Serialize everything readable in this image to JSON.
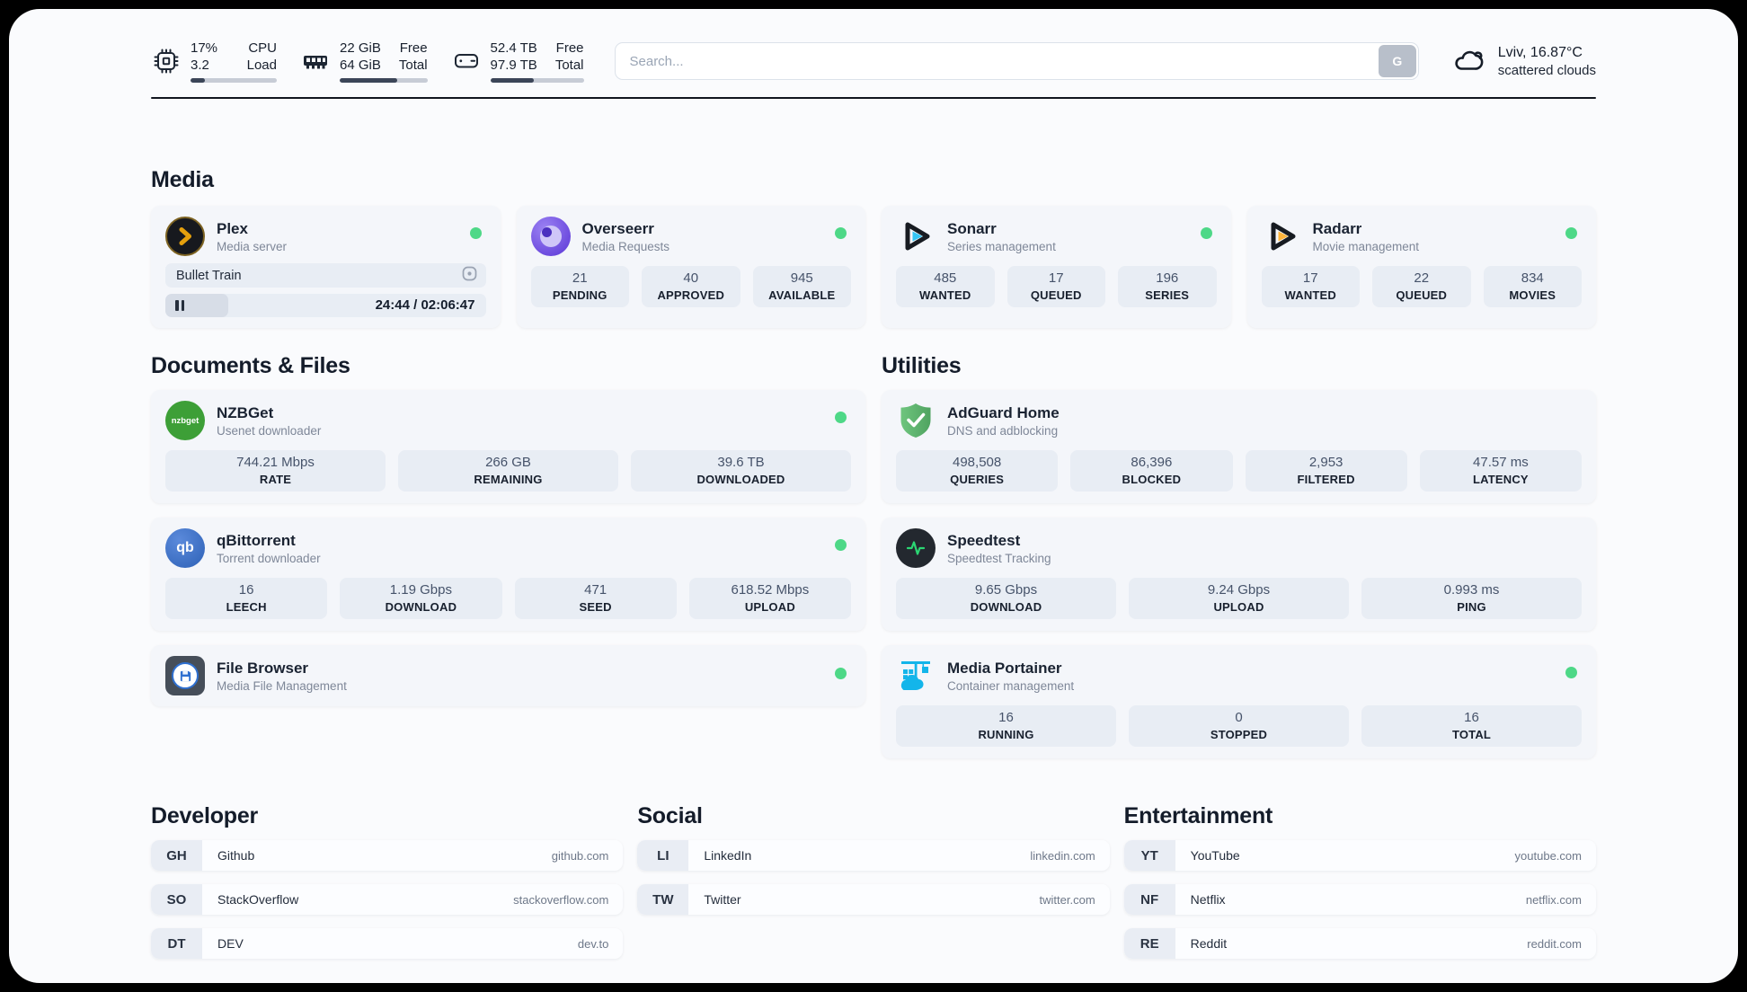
{
  "header": {
    "system_widgets": [
      {
        "icon": "cpu-icon",
        "value_top": "17%",
        "value_bottom": "3.2",
        "label_top": "CPU",
        "label_bottom": "Load",
        "progress_pct": 17
      },
      {
        "icon": "memory-icon",
        "value_top": "22 GiB",
        "value_bottom": "64 GiB",
        "label_top": "Free",
        "label_bottom": "Total",
        "progress_pct": 66
      },
      {
        "icon": "disk-icon",
        "value_top": "52.4 TB",
        "value_bottom": "97.9 TB",
        "label_top": "Free",
        "label_bottom": "Total",
        "progress_pct": 47
      }
    ],
    "search": {
      "placeholder": "Search...",
      "button_label": "G"
    },
    "weather": {
      "location_temp": "Lviv, 16.87°C",
      "condition": "scattered clouds"
    }
  },
  "sections": {
    "media": {
      "title": "Media",
      "plex": {
        "name": "Plex",
        "subtitle": "Media server",
        "now_playing": "Bullet Train",
        "time": "24:44 / 02:06:47",
        "progress_pct": 19.5
      },
      "overseerr": {
        "name": "Overseerr",
        "subtitle": "Media Requests",
        "stats": [
          {
            "value": "21",
            "label": "PENDING"
          },
          {
            "value": "40",
            "label": "APPROVED"
          },
          {
            "value": "945",
            "label": "AVAILABLE"
          }
        ]
      },
      "sonarr": {
        "name": "Sonarr",
        "subtitle": "Series management",
        "stats": [
          {
            "value": "485",
            "label": "WANTED"
          },
          {
            "value": "17",
            "label": "QUEUED"
          },
          {
            "value": "196",
            "label": "SERIES"
          }
        ]
      },
      "radarr": {
        "name": "Radarr",
        "subtitle": "Movie management",
        "stats": [
          {
            "value": "17",
            "label": "WANTED"
          },
          {
            "value": "22",
            "label": "QUEUED"
          },
          {
            "value": "834",
            "label": "MOVIES"
          }
        ]
      }
    },
    "documents": {
      "title": "Documents & Files",
      "nzbget": {
        "name": "NZBGet",
        "subtitle": "Usenet downloader",
        "icon_text": "nzbget",
        "stats": [
          {
            "value": "744.21 Mbps",
            "label": "RATE"
          },
          {
            "value": "266 GB",
            "label": "REMAINING"
          },
          {
            "value": "39.6 TB",
            "label": "DOWNLOADED"
          }
        ]
      },
      "qbittorrent": {
        "name": "qBittorrent",
        "subtitle": "Torrent downloader",
        "icon_text": "qb",
        "stats": [
          {
            "value": "16",
            "label": "LEECH"
          },
          {
            "value": "1.19 Gbps",
            "label": "DOWNLOAD"
          },
          {
            "value": "471",
            "label": "SEED"
          },
          {
            "value": "618.52 Mbps",
            "label": "UPLOAD"
          }
        ]
      },
      "filebrowser": {
        "name": "File Browser",
        "subtitle": "Media File Management"
      }
    },
    "utilities": {
      "title": "Utilities",
      "adguard": {
        "name": "AdGuard Home",
        "subtitle": "DNS and adblocking",
        "stats": [
          {
            "value": "498,508",
            "label": "QUERIES"
          },
          {
            "value": "86,396",
            "label": "BLOCKED"
          },
          {
            "value": "2,953",
            "label": "FILTERED"
          },
          {
            "value": "47.57 ms",
            "label": "LATENCY"
          }
        ]
      },
      "speedtest": {
        "name": "Speedtest",
        "subtitle": "Speedtest Tracking",
        "stats": [
          {
            "value": "9.65 Gbps",
            "label": "DOWNLOAD"
          },
          {
            "value": "9.24 Gbps",
            "label": "UPLOAD"
          },
          {
            "value": "0.993 ms",
            "label": "PING"
          }
        ]
      },
      "portainer": {
        "name": "Media Portainer",
        "subtitle": "Container management",
        "stats": [
          {
            "value": "16",
            "label": "RUNNING"
          },
          {
            "value": "0",
            "label": "STOPPED"
          },
          {
            "value": "16",
            "label": "TOTAL"
          }
        ]
      }
    },
    "links": {
      "developer": {
        "title": "Developer",
        "items": [
          {
            "abbr": "GH",
            "name": "Github",
            "url": "github.com"
          },
          {
            "abbr": "SO",
            "name": "StackOverflow",
            "url": "stackoverflow.com"
          },
          {
            "abbr": "DT",
            "name": "DEV",
            "url": "dev.to"
          }
        ]
      },
      "social": {
        "title": "Social",
        "items": [
          {
            "abbr": "LI",
            "name": "LinkedIn",
            "url": "linkedin.com"
          },
          {
            "abbr": "TW",
            "name": "Twitter",
            "url": "twitter.com"
          }
        ]
      },
      "entertainment": {
        "title": "Entertainment",
        "items": [
          {
            "abbr": "YT",
            "name": "YouTube",
            "url": "youtube.com"
          },
          {
            "abbr": "NF",
            "name": "Netflix",
            "url": "netflix.com"
          },
          {
            "abbr": "RE",
            "name": "Reddit",
            "url": "reddit.com"
          }
        ]
      }
    }
  },
  "colors": {
    "status_online": "#4ed887",
    "plex_orange": "#e5a00d",
    "sonarr_blue": "#35c5f4",
    "radarr_yellow": "#ffb53c",
    "nzbget_green": "#3d9f37",
    "qbittorrent_blue": "#2d61b6",
    "adguard_green": "#5fba6e",
    "speedtest_pulse": "#2bd673",
    "portainer_blue": "#13b5ea",
    "filebrowser_blue": "#2e6fd0",
    "page_bg": "#fafbfd",
    "card_bg": "#f4f6fa",
    "chip_bg": "#e8edf4"
  }
}
